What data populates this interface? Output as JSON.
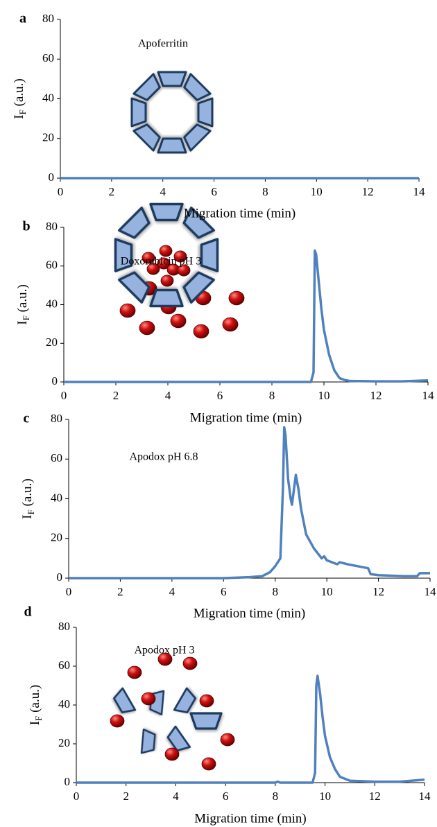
{
  "chart_data": [
    {
      "type": "line",
      "panel": "a",
      "title": "Apoferritin",
      "xlabel": "Migration time (min)",
      "ylabel": [
        "I",
        "F",
        " (a.u.)"
      ],
      "x": [
        0,
        14
      ],
      "values": [
        0,
        0
      ],
      "color": "#4f81bd",
      "xlim": [
        0,
        14
      ],
      "xticks": [
        0,
        2,
        4,
        6,
        8,
        10,
        12,
        14
      ],
      "ylim": [
        0,
        80
      ],
      "yticks": [
        0,
        20,
        40,
        60,
        80
      ]
    },
    {
      "type": "line",
      "panel": "b",
      "title": "Doxorubicin pH  3",
      "xlabel": "Migration time (min)",
      "ylabel": [
        "I",
        "F",
        " (a.u.)"
      ],
      "x": [
        0,
        9.5,
        9.6,
        9.65,
        9.7,
        9.8,
        9.9,
        10.0,
        10.2,
        10.4,
        10.6,
        10.8,
        11,
        12,
        13,
        14
      ],
      "values": [
        0,
        0,
        5,
        68,
        66,
        52,
        38,
        27,
        14,
        6,
        2,
        1,
        0.5,
        0.3,
        0.3,
        0.8
      ],
      "color": "#4f81bd",
      "xlim": [
        0,
        14
      ],
      "xticks": [
        0,
        2,
        4,
        6,
        8,
        10,
        12,
        14
      ],
      "ylim": [
        0,
        80
      ],
      "yticks": [
        0,
        20,
        40,
        60,
        80
      ]
    },
    {
      "type": "line",
      "panel": "c",
      "title": "Apodox pH 6.8",
      "xlabel": "Migration time (min)",
      "ylabel": [
        "I",
        "F",
        " (a.u.)"
      ],
      "x": [
        0,
        6,
        7,
        7.5,
        7.8,
        8.0,
        8.2,
        8.3,
        8.35,
        8.4,
        8.5,
        8.6,
        8.65,
        8.7,
        8.8,
        8.9,
        9.0,
        9.2,
        9.5,
        9.8,
        9.9,
        10.0,
        10.2,
        10.4,
        10.5,
        10.8,
        11.2,
        11.6,
        11.7,
        12,
        13,
        13.5,
        13.6,
        14
      ],
      "values": [
        0,
        0,
        0.5,
        1,
        3,
        6,
        10,
        45,
        76,
        72,
        50,
        40,
        37,
        42,
        52,
        45,
        35,
        22,
        15,
        10,
        11,
        9,
        8,
        7,
        8,
        7,
        6,
        5,
        2,
        1.5,
        1,
        1,
        2.5,
        2.5
      ],
      "color": "#4f81bd",
      "xlim": [
        0,
        14
      ],
      "xticks": [
        0,
        2,
        4,
        6,
        8,
        10,
        12,
        14
      ],
      "ylim": [
        0,
        80
      ],
      "yticks": [
        0,
        20,
        40,
        60,
        80
      ]
    },
    {
      "type": "line",
      "panel": "d",
      "title": "Apodox pH 3",
      "xlabel": "Migration time (min)",
      "ylabel": [
        "I",
        "F",
        " (a.u.)"
      ],
      "x": [
        0,
        8,
        8.1,
        8.2,
        9.5,
        9.6,
        9.65,
        9.7,
        9.8,
        9.9,
        10.0,
        10.2,
        10.4,
        10.6,
        10.8,
        11,
        12,
        13,
        14
      ],
      "values": [
        0,
        0,
        0.5,
        0,
        0,
        5,
        50,
        55,
        46,
        34,
        24,
        13,
        7,
        3,
        2,
        1,
        0.5,
        0.5,
        1.5
      ],
      "color": "#4f81bd",
      "xlim": [
        0,
        14
      ],
      "xticks": [
        0,
        2,
        4,
        6,
        8,
        10,
        12,
        14
      ],
      "ylim": [
        0,
        80
      ],
      "yticks": [
        0,
        20,
        40,
        60,
        80
      ]
    }
  ]
}
